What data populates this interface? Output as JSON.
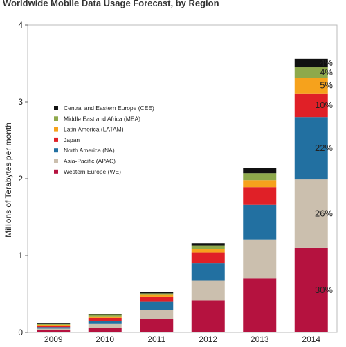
{
  "chart_data": {
    "type": "bar",
    "stacked": true,
    "title": "Worldwide Mobile Data Usage Forecast, by Region",
    "xlabel": "",
    "ylabel": "Millions of Terabytes per month",
    "ylim": [
      0,
      4
    ],
    "yticks": [
      "0",
      "1",
      "2",
      "3",
      "4"
    ],
    "grid": false,
    "legend_position": "left",
    "categories": [
      "2009",
      "2010",
      "2011",
      "2012",
      "2013",
      "2014"
    ],
    "series": [
      {
        "name": "Western Europe (WE)",
        "color": "#b5123f",
        "values": [
          0.03,
          0.06,
          0.18,
          0.42,
          0.7,
          1.1
        ]
      },
      {
        "name": "Asia-Pacific (APAC)",
        "color": "#cbbfae",
        "values": [
          0.02,
          0.05,
          0.11,
          0.26,
          0.51,
          0.89
        ]
      },
      {
        "name": "North America (NA)",
        "color": "#2270a1",
        "values": [
          0.02,
          0.04,
          0.11,
          0.22,
          0.45,
          0.81
        ]
      },
      {
        "name": "Japan",
        "color": "#e02027",
        "values": [
          0.02,
          0.04,
          0.06,
          0.14,
          0.23,
          0.31
        ]
      },
      {
        "name": "Latin America (LATAM)",
        "color": "#f6a21c",
        "values": [
          0.01,
          0.02,
          0.03,
          0.05,
          0.09,
          0.2
        ]
      },
      {
        "name": "Middle East and Africa (MEA)",
        "color": "#8ea94b",
        "values": [
          0.01,
          0.02,
          0.02,
          0.04,
          0.09,
          0.14
        ]
      },
      {
        "name": "Central and Eastern Europe (CEE)",
        "color": "#111111",
        "values": [
          0.01,
          0.01,
          0.02,
          0.03,
          0.07,
          0.11
        ]
      }
    ],
    "legend_order": [
      "Central and Eastern Europe (CEE)",
      "Middle East and Africa (MEA)",
      "Latin America (LATAM)",
      "Japan",
      "North America (NA)",
      "Asia-Pacific (APAC)",
      "Western Europe (WE)"
    ],
    "annotations": [
      {
        "series": "Central and Eastern Europe (CEE)",
        "text": "4%"
      },
      {
        "series": "Middle East and Africa (MEA)",
        "text": "4%"
      },
      {
        "series": "Latin America (LATAM)",
        "text": "5%"
      },
      {
        "series": "Japan",
        "text": "10%"
      },
      {
        "series": "North America (NA)",
        "text": "22%"
      },
      {
        "series": "Asia-Pacific (APAC)",
        "text": "26%"
      },
      {
        "series": "Western Europe (WE)",
        "text": "30%"
      }
    ]
  }
}
